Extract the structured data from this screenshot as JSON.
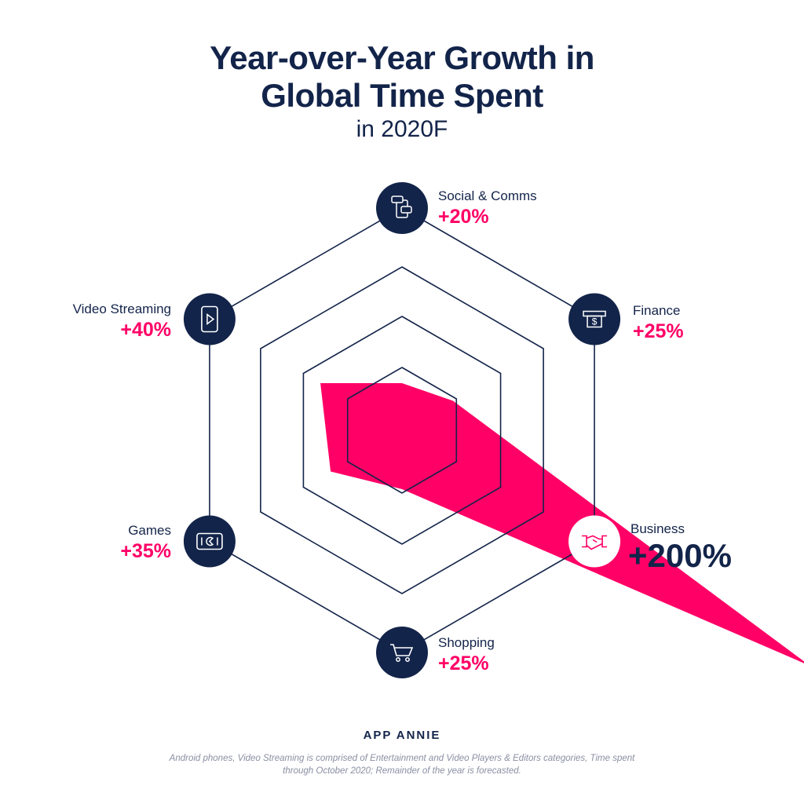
{
  "title_lines": [
    "Year-over-Year Growth in",
    "Global Time Spent"
  ],
  "subtitle": "in 2020F",
  "chart_data": {
    "type": "radar",
    "title": "Year-over-Year Growth in Global Time Spent",
    "subtitle": "in 2020F",
    "categories": [
      "Social & Comms",
      "Finance",
      "Business",
      "Shopping",
      "Games",
      "Video Streaming"
    ],
    "values": [
      20,
      25,
      200,
      25,
      35,
      40
    ],
    "value_labels": [
      "+20%",
      "+25%",
      "+200%",
      "+25%",
      "+35%",
      "+40%"
    ],
    "icons": [
      "chat-phone-icon",
      "atm-cash-icon",
      "handshake-icon",
      "shopping-cart-icon",
      "gamepad-icon",
      "video-play-icon"
    ],
    "highlight": "Business",
    "grid_rings": 4,
    "unit": "%"
  },
  "colors": {
    "navy": "#13244a",
    "pink": "#ff0066"
  },
  "brand": "APP ANNIE",
  "footnote": "Android phones, Video Streaming is comprised of Entertainment and Video Players & Editors categories, Time spent through October 2020; Remainder of the year is forecasted."
}
